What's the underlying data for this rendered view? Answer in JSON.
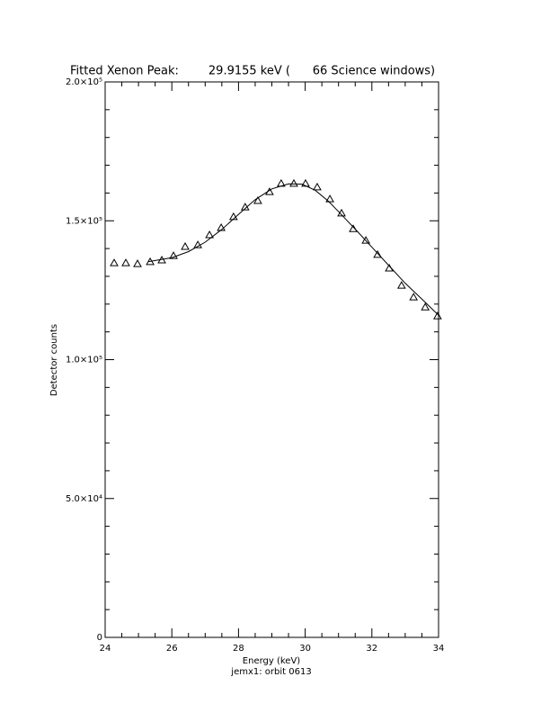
{
  "chart_data": {
    "type": "scatter",
    "title": "Fitted Xenon Peak:        29.9155 keV (      66 Science windows)",
    "xlabel": "Energy (keV)",
    "caption": "jemx1: orbit 0613",
    "ylabel": "Detector counts",
    "xlim": [
      24,
      34
    ],
    "xticks": [
      24,
      26,
      28,
      30,
      32,
      34
    ],
    "ylim": [
      0,
      200000
    ],
    "yticks": [
      0,
      {
        "value": 50000,
        "label": "5.0×10⁴"
      },
      {
        "value": 100000,
        "label": "1.0×10⁵"
      },
      {
        "value": 150000,
        "label": "1.5×10⁵"
      },
      {
        "value": 200000,
        "label": "2.0×10⁵"
      }
    ],
    "series": [
      {
        "type": "scatter",
        "marker": "triangle",
        "color": "#000000",
        "x": [
          24.27,
          24.62,
          24.97,
          25.35,
          25.7,
          26.05,
          26.4,
          26.78,
          27.13,
          27.48,
          27.85,
          28.2,
          28.58,
          28.93,
          29.28,
          29.66,
          30.01,
          30.36,
          30.74,
          31.09,
          31.44,
          31.82,
          32.17,
          32.52,
          32.89,
          33.25,
          33.6,
          33.97
        ],
        "values": [
          134800,
          134800,
          134500,
          135200,
          135800,
          137400,
          140700,
          141300,
          144900,
          147500,
          151400,
          154900,
          157200,
          160400,
          163400,
          163400,
          163400,
          162100,
          157800,
          152700,
          147100,
          142900,
          137800,
          132900,
          126700,
          122500,
          118900,
          115700
        ]
      },
      {
        "type": "line",
        "color": "#000000",
        "x": [
          25.3,
          26,
          26.5,
          27,
          27.5,
          28,
          28.5,
          29,
          29.5,
          29.9,
          30.3,
          30.7,
          31,
          31.5,
          32,
          32.5,
          33,
          33.5,
          34
        ],
        "values": [
          135300,
          136700,
          138900,
          142300,
          146900,
          152300,
          157600,
          161500,
          163300,
          163200,
          161000,
          157000,
          153300,
          147000,
          140500,
          134000,
          127500,
          121800,
          116000
        ]
      }
    ]
  }
}
